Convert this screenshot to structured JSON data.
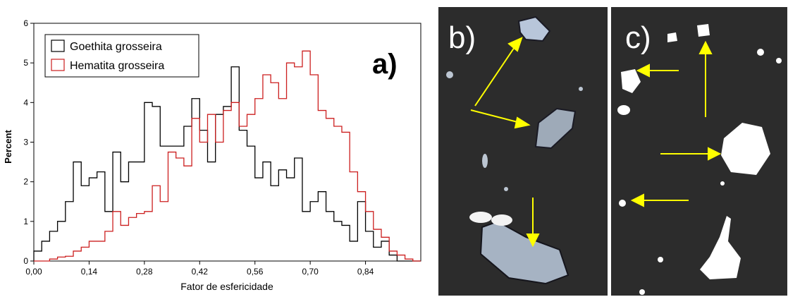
{
  "figure": {
    "panel_a_label": "a)",
    "panel_b_label": "b)",
    "panel_c_label": "c)"
  },
  "chart_data": {
    "type": "histogram",
    "xlabel": "Fator de esfericidade",
    "ylabel": "Percent",
    "xlim": [
      0.0,
      0.98
    ],
    "ylim": [
      0,
      6
    ],
    "xticks": [
      "0,00",
      "0,14",
      "0,28",
      "0,42",
      "0,56",
      "0,70",
      "0,84"
    ],
    "xtick_values": [
      0.0,
      0.14,
      0.28,
      0.42,
      0.56,
      0.7,
      0.84
    ],
    "yticks": [
      0,
      1,
      2,
      3,
      4,
      5,
      6
    ],
    "bin_start": 0.0,
    "bin_width": 0.02,
    "legend_position": "top-left",
    "series": [
      {
        "name": "Goethita grosseira",
        "color": "#000000",
        "values": [
          0.25,
          0.5,
          0.75,
          1.0,
          1.5,
          2.5,
          1.9,
          2.1,
          2.25,
          1.25,
          2.75,
          2.0,
          2.5,
          2.5,
          4.0,
          3.9,
          2.9,
          2.9,
          2.9,
          3.4,
          4.1,
          3.3,
          2.5,
          3.7,
          3.9,
          4.9,
          3.3,
          2.9,
          2.1,
          2.5,
          1.9,
          2.3,
          2.1,
          2.6,
          1.25,
          1.5,
          1.75,
          1.25,
          1.0,
          0.9,
          0.5,
          1.5,
          0.75,
          0.35,
          0.5,
          0.15,
          0.0,
          0.0,
          0.0
        ]
      },
      {
        "name": "Hematita grosseira",
        "color": "#cc1f1f",
        "values": [
          0.0,
          0.0,
          0.05,
          0.1,
          0.12,
          0.25,
          0.35,
          0.5,
          0.5,
          0.75,
          1.25,
          0.9,
          1.1,
          1.2,
          1.25,
          1.9,
          1.5,
          2.75,
          2.6,
          2.4,
          3.6,
          3.0,
          3.7,
          3.0,
          3.8,
          4.0,
          3.4,
          3.7,
          4.1,
          4.7,
          4.5,
          4.1,
          5.0,
          4.9,
          5.3,
          4.7,
          3.8,
          3.6,
          3.4,
          3.25,
          2.25,
          1.75,
          1.25,
          0.8,
          0.6,
          0.25,
          0.15,
          0.05,
          0.0
        ]
      }
    ]
  },
  "image_b": {
    "name": "micrograph-b",
    "arrow_color": "#ffff00",
    "particle_color": "#b8c6da"
  },
  "image_c": {
    "name": "micrograph-c",
    "arrow_color": "#ffff00",
    "particle_color": "#ffffff"
  }
}
